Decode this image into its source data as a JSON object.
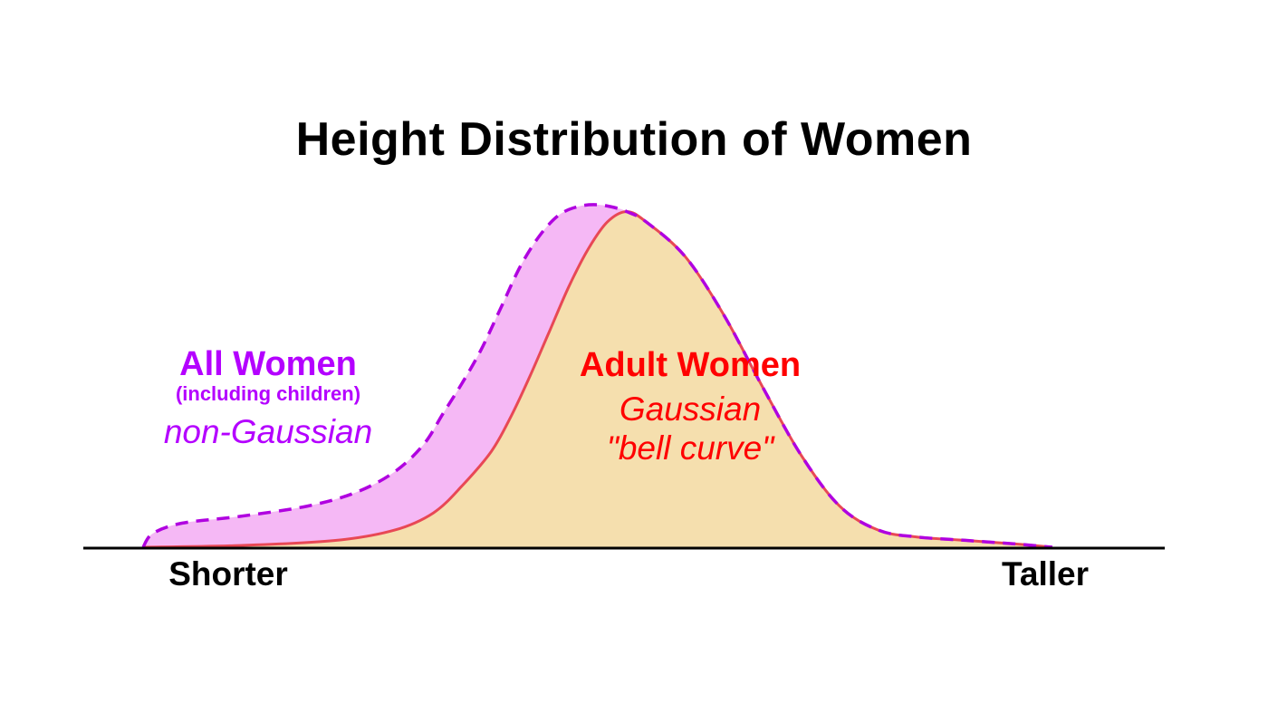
{
  "chart_data": {
    "type": "area",
    "title": "Height Distribution of Women",
    "xlabel": "",
    "ylabel": "",
    "x_tick_labels": {
      "left": "Shorter",
      "right": "Taller"
    },
    "xlim": [
      0,
      1
    ],
    "ylim": [
      0,
      1
    ],
    "grid": false,
    "series": [
      {
        "key": "all",
        "name": "All Women",
        "subtitle": "(including children)",
        "description": "non-Gaussian",
        "line_style": "dashed",
        "line_color": "#b000e0",
        "fill_color": "#f5b8f5",
        "points": [
          [
            0.0,
            0.0
          ],
          [
            0.01,
            0.04
          ],
          [
            0.04,
            0.07
          ],
          [
            0.1,
            0.09
          ],
          [
            0.17,
            0.12
          ],
          [
            0.22,
            0.16
          ],
          [
            0.26,
            0.22
          ],
          [
            0.29,
            0.3
          ],
          [
            0.31,
            0.39
          ],
          [
            0.33,
            0.48
          ],
          [
            0.35,
            0.58
          ],
          [
            0.37,
            0.7
          ],
          [
            0.39,
            0.82
          ],
          [
            0.41,
            0.91
          ],
          [
            0.43,
            0.97
          ],
          [
            0.45,
            0.995
          ],
          [
            0.47,
            1.0
          ],
          [
            0.49,
            0.99
          ],
          [
            0.5,
            0.98
          ],
          [
            0.52,
            0.95
          ],
          [
            0.56,
            0.85
          ],
          [
            0.6,
            0.68
          ],
          [
            0.64,
            0.47
          ],
          [
            0.68,
            0.27
          ],
          [
            0.72,
            0.12
          ],
          [
            0.76,
            0.05
          ],
          [
            0.8,
            0.03
          ],
          [
            0.85,
            0.02
          ],
          [
            0.9,
            0.01
          ],
          [
            0.94,
            0.0
          ]
        ]
      },
      {
        "key": "adult",
        "name": "Adult Women",
        "description_line1": "Gaussian",
        "description_line2": "\"bell curve\"",
        "line_style": "solid",
        "line_color": "#e84855",
        "fill_color": "#f5dfae",
        "points": [
          [
            0.0,
            0.0
          ],
          [
            0.1,
            0.005
          ],
          [
            0.2,
            0.02
          ],
          [
            0.26,
            0.05
          ],
          [
            0.3,
            0.1
          ],
          [
            0.33,
            0.18
          ],
          [
            0.36,
            0.28
          ],
          [
            0.38,
            0.38
          ],
          [
            0.4,
            0.5
          ],
          [
            0.42,
            0.63
          ],
          [
            0.44,
            0.76
          ],
          [
            0.46,
            0.87
          ],
          [
            0.48,
            0.95
          ],
          [
            0.5,
            0.98
          ],
          [
            0.52,
            0.95
          ],
          [
            0.56,
            0.85
          ],
          [
            0.6,
            0.68
          ],
          [
            0.64,
            0.47
          ],
          [
            0.68,
            0.27
          ],
          [
            0.72,
            0.12
          ],
          [
            0.76,
            0.05
          ],
          [
            0.8,
            0.03
          ],
          [
            0.85,
            0.02
          ],
          [
            0.9,
            0.01
          ],
          [
            0.94,
            0.0
          ]
        ]
      }
    ],
    "label_colors": {
      "all": "#b400ff",
      "adult": "#ff0000"
    },
    "axis_color": "#000000"
  }
}
